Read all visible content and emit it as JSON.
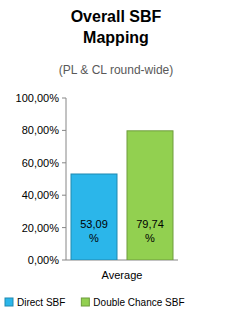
{
  "chart_data": {
    "type": "bar",
    "title": "Overall SBF Mapping",
    "subtitle": "(PL & CL round-wide)",
    "categories": [
      "Average"
    ],
    "series": [
      {
        "name": "Direct SBF",
        "color": "#2bb6ea",
        "values": [
          53.09
        ],
        "value_labels": [
          "53,09 %"
        ]
      },
      {
        "name": "Double Chance SBF",
        "color": "#92d050",
        "values": [
          79.74
        ],
        "value_labels": [
          "79,74 %"
        ]
      }
    ],
    "ylim": [
      0,
      100
    ],
    "yticks": [
      {
        "value": 0,
        "label": "0,00%"
      },
      {
        "value": 20,
        "label": "20,00%"
      },
      {
        "value": 40,
        "label": "40,00%"
      },
      {
        "value": 60,
        "label": "60,00%"
      },
      {
        "value": 80,
        "label": "80,00%"
      },
      {
        "value": 100,
        "label": "100,00%"
      }
    ],
    "grid": false,
    "data_labels": true,
    "legend": "bottom"
  }
}
